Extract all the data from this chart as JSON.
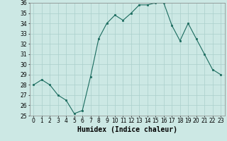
{
  "x": [
    0,
    1,
    2,
    3,
    4,
    5,
    6,
    7,
    8,
    9,
    10,
    11,
    12,
    13,
    14,
    15,
    16,
    17,
    18,
    19,
    20,
    21,
    22,
    23
  ],
  "y": [
    28,
    28.5,
    28,
    27,
    26.5,
    25.2,
    25.5,
    28.8,
    32.5,
    34,
    34.8,
    34.3,
    35,
    35.8,
    35.8,
    36,
    36,
    33.8,
    32.3,
    34,
    32.5,
    31,
    29.5,
    29
  ],
  "xlabel": "Humidex (Indice chaleur)",
  "ylim": [
    25,
    36
  ],
  "xlim": [
    -0.5,
    23.5
  ],
  "yticks": [
    25,
    26,
    27,
    28,
    29,
    30,
    31,
    32,
    33,
    34,
    35,
    36
  ],
  "xticks": [
    0,
    1,
    2,
    3,
    4,
    5,
    6,
    7,
    8,
    9,
    10,
    11,
    12,
    13,
    14,
    15,
    16,
    17,
    18,
    19,
    20,
    21,
    22,
    23
  ],
  "line_color": "#1a6b5e",
  "marker_color": "#1a6b5e",
  "bg_color": "#cce8e4",
  "grid_color": "#aacfcb",
  "label_fontsize": 7,
  "tick_fontsize": 5.5
}
